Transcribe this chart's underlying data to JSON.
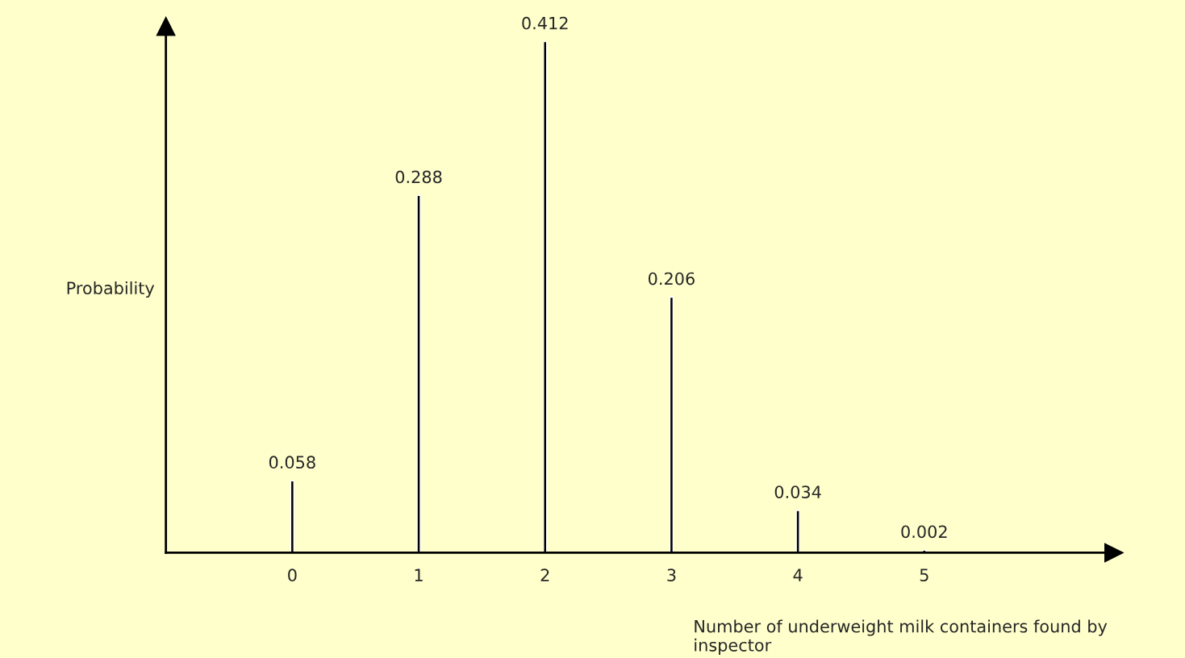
{
  "chart_data": {
    "type": "bar",
    "xlabel": "Number of underweight milk containers found by inspector",
    "ylabel": "Probability",
    "categories": [
      "0",
      "1",
      "2",
      "3",
      "4",
      "5"
    ],
    "values": [
      0.058,
      0.288,
      0.412,
      0.206,
      0.034,
      0.002
    ],
    "color": "#000000",
    "data_labels": true,
    "grid": false,
    "legend": false
  }
}
